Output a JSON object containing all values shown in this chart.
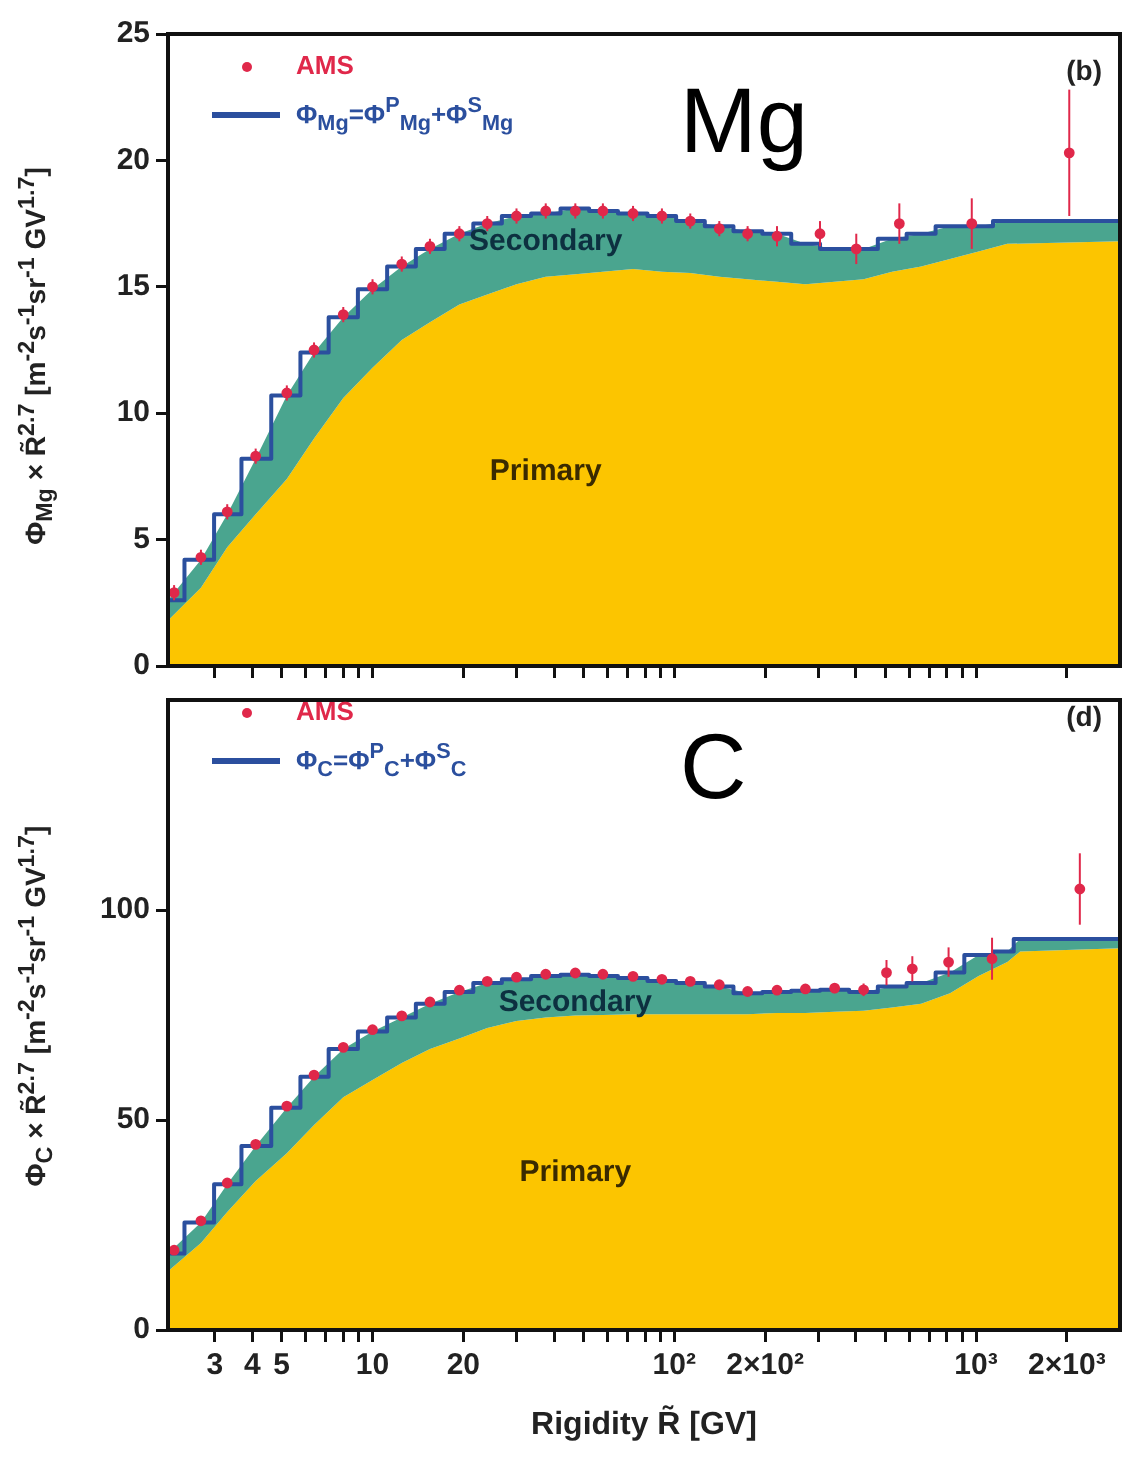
{
  "chart_data": [
    {
      "type": "area",
      "title": "Mg",
      "annotations": [
        "(b)"
      ],
      "ylabel": "Φ$_{Mg}$ × R̃$^{2.7}$ [m$^{-2}$s$^{-1}$sr$^{-1}$ GV$^{1.7}$]",
      "stacked": true,
      "log": "x",
      "legend": "top left",
      "grid": false,
      "tick_labels": "y",
      "x": [
        2.1,
        2.7,
        3.3,
        4.1,
        5.2,
        6.4,
        8,
        10,
        12.5,
        15.5,
        19.4,
        24,
        30,
        37.5,
        47,
        58,
        73,
        91,
        113,
        141,
        175,
        219,
        272,
        340,
        424,
        527,
        658,
        820,
        1020,
        1270,
        3000
      ],
      "series": [
        {
          "name": "Primary",
          "color": "#fcc500",
          "values": [
            1.8,
            3.1,
            4.7,
            6.0,
            7.4,
            9.0,
            10.6,
            11.8,
            12.9,
            13.6,
            14.3,
            14.7,
            15.1,
            15.4,
            15.5,
            15.6,
            15.7,
            15.6,
            15.55,
            15.4,
            15.3,
            15.2,
            15.1,
            15.2,
            15.3,
            15.6,
            15.8,
            16.1,
            16.4,
            16.7,
            16.8
          ]
        },
        {
          "name": "Secondary",
          "color": "#4aa58f",
          "values": [
            0.8,
            1.1,
            1.3,
            2.2,
            3.3,
            3.4,
            3.2,
            3.1,
            2.9,
            2.9,
            2.8,
            2.8,
            2.7,
            2.5,
            2.6,
            2.4,
            2.2,
            2.2,
            2.05,
            2.0,
            1.9,
            1.9,
            1.6,
            1.3,
            1.2,
            1.3,
            1.3,
            1.3,
            1.0,
            0.9,
            0.8
          ]
        },
        {
          "name": "Φ$_{Mg}$=Φ$^{P}$$_{Mg}$+Φ$^{S}$$_{Mg}$",
          "type": "step",
          "color": "#2b4f9e",
          "values": [
            2.6,
            4.2,
            6.0,
            8.2,
            10.7,
            12.4,
            13.8,
            14.9,
            15.8,
            16.5,
            17.1,
            17.5,
            17.8,
            17.9,
            18.1,
            18.0,
            17.9,
            17.8,
            17.6,
            17.4,
            17.2,
            17.1,
            16.7,
            16.5,
            16.5,
            16.9,
            17.1,
            17.4,
            17.4,
            17.6,
            17.6
          ]
        },
        {
          "name": "AMS",
          "type": "scatter",
          "marker": "circle",
          "color": "#e0284a",
          "x": [
            2.2,
            2.7,
            3.3,
            4.1,
            5.2,
            6.4,
            8,
            10,
            12.5,
            15.5,
            19.4,
            24,
            30,
            37.5,
            47,
            58,
            73,
            91,
            113,
            141,
            175,
            219,
            304,
            401,
            557,
            968,
            2037
          ],
          "values": [
            2.9,
            4.3,
            6.1,
            8.3,
            10.8,
            12.5,
            13.9,
            15.0,
            15.9,
            16.6,
            17.1,
            17.5,
            17.8,
            18.0,
            18.0,
            18.0,
            17.9,
            17.8,
            17.6,
            17.3,
            17.1,
            17.0,
            17.1,
            16.5,
            17.5,
            17.5,
            20.3
          ],
          "errors": [
            0.3,
            0.3,
            0.3,
            0.3,
            0.3,
            0.3,
            0.3,
            0.3,
            0.3,
            0.3,
            0.3,
            0.3,
            0.3,
            0.3,
            0.3,
            0.3,
            0.3,
            0.3,
            0.3,
            0.3,
            0.3,
            0.4,
            0.5,
            0.6,
            0.8,
            1.0,
            2.5
          ]
        }
      ],
      "xlim": [
        2.1,
        3000
      ],
      "xticks": [
        {
          "value": 3,
          "label": null
        },
        {
          "value": 4,
          "label": null
        },
        {
          "value": 5,
          "label": null
        },
        {
          "value": 6,
          "label": null
        },
        {
          "value": 7,
          "label": null
        },
        {
          "value": 8,
          "label": null
        },
        {
          "value": 9,
          "label": null
        },
        {
          "value": 10,
          "label": null
        },
        {
          "value": 20,
          "label": null
        },
        {
          "value": 30,
          "label": null
        },
        {
          "value": 40,
          "label": null
        },
        {
          "value": 50,
          "label": null
        },
        {
          "value": 60,
          "label": null
        },
        {
          "value": 70,
          "label": null
        },
        {
          "value": 80,
          "label": null
        },
        {
          "value": 90,
          "label": null
        },
        {
          "value": 100,
          "label": null
        },
        {
          "value": 200,
          "label": null
        },
        {
          "value": 300,
          "label": null
        },
        {
          "value": 400,
          "label": null
        },
        {
          "value": 500,
          "label": null
        },
        {
          "value": 600,
          "label": null
        },
        {
          "value": 700,
          "label": null
        },
        {
          "value": 800,
          "label": null
        },
        {
          "value": 900,
          "label": null
        },
        {
          "value": 1000,
          "label": null
        },
        {
          "value": 2000,
          "label": null
        }
      ],
      "ylim": [
        0,
        25
      ],
      "yticks": [
        0,
        5,
        10,
        15,
        20,
        25
      ]
    },
    {
      "type": "area",
      "title": "C",
      "annotations": [
        "(d)"
      ],
      "xlabel": "Rigidity R̃ [GV]",
      "ylabel": "Φ$_{C}$ × R̃$^{2.7}$ [m$^{-2}$s$^{-1}$sr$^{-1}$ GV$^{1.7}$]",
      "stacked": true,
      "log": "x",
      "legend": "top left",
      "grid": false,
      "x": [
        2.1,
        2.7,
        3.3,
        4.1,
        5.2,
        6.4,
        8,
        10,
        12.5,
        15.5,
        19.4,
        24,
        30,
        37.5,
        47,
        58,
        73,
        91,
        113,
        141,
        175,
        219,
        272,
        340,
        424,
        527,
        658,
        820,
        1020,
        1270,
        1400,
        3000
      ],
      "series": [
        {
          "name": "Primary",
          "color": "#fcc500",
          "values": [
            14.0,
            20.7,
            28.1,
            35.5,
            42.1,
            48.8,
            55.4,
            59.5,
            63.6,
            66.9,
            69.4,
            71.9,
            73.6,
            74.4,
            74.9,
            75.0,
            75.2,
            75.2,
            75.2,
            75.2,
            75.2,
            75.5,
            75.5,
            75.8,
            76.0,
            76.8,
            77.7,
            80.2,
            84.3,
            87.6,
            90.1,
            90.9
          ]
        },
        {
          "name": "Secondary",
          "color": "#4aa58f",
          "values": [
            4.2,
            4.9,
            6.6,
            8.3,
            10.8,
            11.5,
            11.5,
            11.6,
            10.8,
            10.8,
            11.1,
            10.7,
            9.9,
            9.9,
            9.7,
            9.3,
            8.6,
            7.9,
            7.4,
            6.6,
            5.0,
            5.0,
            5.3,
            5.2,
            4.5,
            5.0,
            4.9,
            4.9,
            5.0,
            2.5,
            3.0,
            2.2
          ]
        },
        {
          "name": "Φ$_{C}$=Φ$^{P}$$_{C}$+Φ$^{S}$$_{C}$",
          "type": "step",
          "color": "#2b4f9e",
          "values": [
            18.2,
            25.6,
            34.7,
            43.8,
            52.9,
            60.3,
            66.9,
            71.1,
            74.4,
            77.7,
            80.5,
            82.6,
            83.5,
            84.3,
            84.6,
            84.3,
            83.8,
            83.1,
            82.6,
            81.8,
            80.2,
            80.5,
            80.8,
            81.0,
            80.5,
            81.8,
            82.6,
            85.1,
            89.3,
            90.1,
            93.1,
            93.1
          ]
        },
        {
          "name": "AMS",
          "type": "scatter",
          "marker": "circle",
          "color": "#e0284a",
          "x": [
            2.2,
            2.7,
            3.3,
            4.1,
            5.2,
            6.4,
            8,
            10,
            12.5,
            15.5,
            19.4,
            24,
            30,
            37.5,
            47,
            58,
            73,
            91,
            113,
            141,
            175,
            219,
            272,
            340,
            424,
            505,
            615,
            811,
            1130,
            2208
          ],
          "values": [
            19.0,
            26.0,
            35.0,
            44.2,
            53.3,
            60.7,
            67.3,
            71.5,
            74.8,
            78.1,
            80.9,
            83.0,
            84.0,
            84.7,
            85.0,
            84.7,
            84.2,
            83.5,
            83.0,
            82.2,
            80.6,
            80.9,
            81.2,
            81.4,
            81.0,
            85.1,
            86.0,
            87.6,
            88.4,
            105
          ],
          "errors": [
            1,
            1,
            1,
            1,
            1,
            1,
            1,
            1,
            1,
            1,
            1,
            1,
            1,
            1,
            1,
            1,
            1,
            1,
            1,
            1,
            1,
            1,
            1,
            1.2,
            1.5,
            3,
            3,
            3.5,
            5,
            8.5
          ]
        }
      ],
      "xlim": [
        2.1,
        3000
      ],
      "xticks": [
        {
          "value": 3,
          "label": "3"
        },
        {
          "value": 4,
          "label": "4"
        },
        {
          "value": 5,
          "label": "5"
        },
        {
          "value": 6,
          "label": null
        },
        {
          "value": 7,
          "label": null
        },
        {
          "value": 8,
          "label": null
        },
        {
          "value": 9,
          "label": null
        },
        {
          "value": 10,
          "label": "10"
        },
        {
          "value": 20,
          "label": "20"
        },
        {
          "value": 30,
          "label": null
        },
        {
          "value": 40,
          "label": null
        },
        {
          "value": 50,
          "label": null
        },
        {
          "value": 60,
          "label": null
        },
        {
          "value": 70,
          "label": null
        },
        {
          "value": 80,
          "label": null
        },
        {
          "value": 90,
          "label": null
        },
        {
          "value": 100,
          "label": "10²"
        },
        {
          "value": 200,
          "label": "2×10²"
        },
        {
          "value": 300,
          "label": null
        },
        {
          "value": 400,
          "label": null
        },
        {
          "value": 500,
          "label": null
        },
        {
          "value": 600,
          "label": null
        },
        {
          "value": 700,
          "label": null
        },
        {
          "value": 800,
          "label": null
        },
        {
          "value": 900,
          "label": null
        },
        {
          "value": 1000,
          "label": "10³"
        },
        {
          "value": 2000,
          "label": "2×10³"
        }
      ],
      "ylim": [
        0,
        150
      ],
      "yticks": [
        0,
        50,
        100
      ]
    }
  ]
}
